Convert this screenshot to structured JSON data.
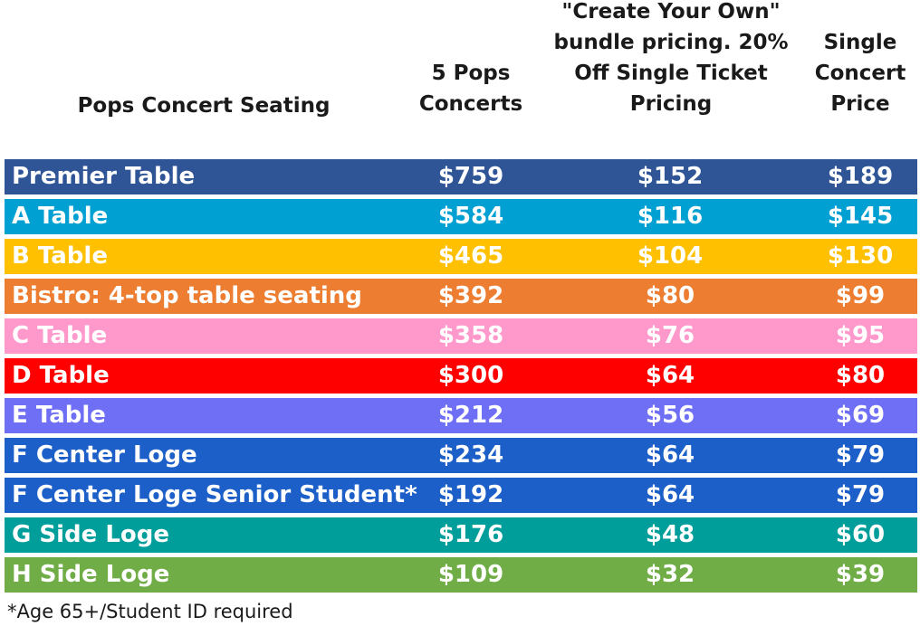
{
  "header": {
    "col1": "Pops Concert Seating",
    "col2": [
      "5 Pops",
      "Concerts"
    ],
    "col3": [
      "\"Create Your Own\"",
      "bundle pricing. 20%",
      "Off Single Ticket",
      "Pricing"
    ],
    "col4": [
      "Single",
      "Concert",
      "Price"
    ]
  },
  "rows": [
    {
      "label": "Premier Table",
      "five": "$759",
      "bundle": "$152",
      "single": "$189",
      "color": "#2f5597"
    },
    {
      "label": "A Table",
      "five": "$584",
      "bundle": "$116",
      "single": "$145",
      "color": "#00a0d2"
    },
    {
      "label": "B Table",
      "five": "$465",
      "bundle": "$104",
      "single": "$130",
      "color": "#ffc000"
    },
    {
      "label": "Bistro: 4-top table seating",
      "five": "$392",
      "bundle": "$80",
      "single": "$99",
      "color": "#ed7d31"
    },
    {
      "label": "C Table",
      "five": "$358",
      "bundle": "$76",
      "single": "$95",
      "color": "#ff99cc"
    },
    {
      "label": "D Table",
      "five": "$300",
      "bundle": "$64",
      "single": "$80",
      "color": "#ff0000"
    },
    {
      "label": "E Table",
      "five": "$212",
      "bundle": "$56",
      "single": "$69",
      "color": "#6f6ff5"
    },
    {
      "label": "F Center Loge",
      "five": "$234",
      "bundle": "$64",
      "single": "$79",
      "color": "#1c5fc8"
    },
    {
      "label": "F Center Loge Senior Student*",
      "five": "$192",
      "bundle": "$64",
      "single": "$79",
      "color": "#1c5fc8"
    },
    {
      "label": "G Side Loge",
      "five": "$176",
      "bundle": "$48",
      "single": "$60",
      "color": "#009e9a"
    },
    {
      "label": "H Side Loge",
      "five": "$109",
      "bundle": "$32",
      "single": "$39",
      "color": "#70ad47"
    }
  ],
  "footnote": "*Age 65+/Student ID required"
}
